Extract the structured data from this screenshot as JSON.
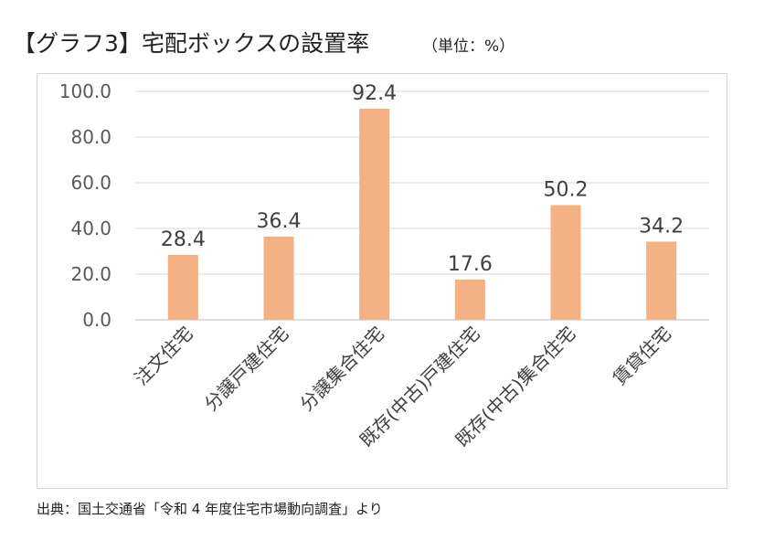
{
  "header": {
    "title": "【グラフ3】宅配ボックスの設置率",
    "unit": "（単位：%）"
  },
  "footer": {
    "source": "出典：国土交通省「令和 4 年度住宅市場動向調査」より"
  },
  "colors": {
    "bar": "#F4B183",
    "grid": "#D9D9D9",
    "axis": "#BFBFBF"
  },
  "chart_data": {
    "type": "bar",
    "categories": [
      "注文住宅",
      "分譲戸建住宅",
      "分譲集合住宅",
      "既存(中古)戸建住宅",
      "既存(中古)集合住宅",
      "賃貸住宅"
    ],
    "values": [
      28.4,
      36.4,
      92.4,
      17.6,
      50.2,
      34.2
    ],
    "value_labels": [
      "28.4",
      "36.4",
      "92.4",
      "17.6",
      "50.2",
      "34.2"
    ],
    "ylim": [
      0,
      100
    ],
    "yticks": [
      "0.0",
      "20.0",
      "40.0",
      "60.0",
      "80.0",
      "100.0"
    ],
    "ytick_values": [
      0,
      20,
      40,
      60,
      80,
      100
    ],
    "grid": true,
    "legend": "none"
  }
}
